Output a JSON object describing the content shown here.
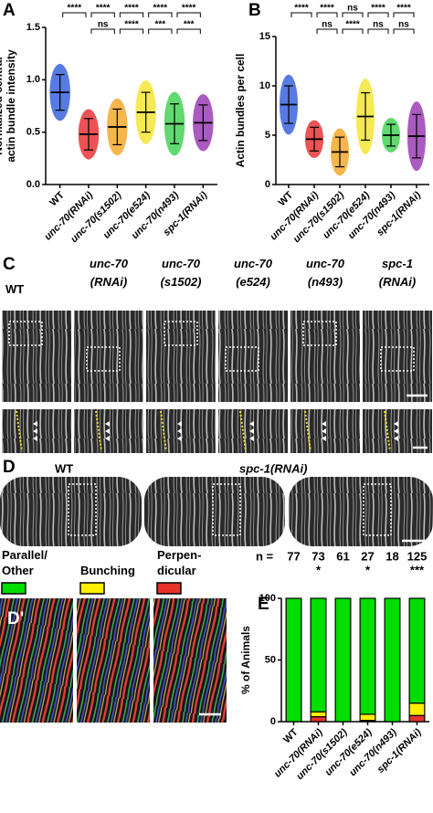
{
  "chart_data": [
    {
      "type": "dot",
      "panel": "A",
      "ylabel": "Normalized central\nactin bundle intensity",
      "categories": [
        "WT",
        "unc-70(RNAi)",
        "unc-70(s1502)",
        "unc-70(e524)",
        "unc-70(n493)",
        "spc-1(RNAi)"
      ],
      "values": [
        0.88,
        0.48,
        0.55,
        0.69,
        0.58,
        0.59
      ],
      "errors": [
        0.17,
        0.15,
        0.17,
        0.19,
        0.19,
        0.17
      ],
      "colors": [
        "#1f4fd8",
        "#e41a1c",
        "#f39c12",
        "#f2e21b",
        "#2ecc40",
        "#8e24aa"
      ],
      "ylim": [
        0,
        1.5
      ],
      "yticks": [
        {
          "value": 0,
          "label": "0.0"
        },
        0.5,
        {
          "value": 1,
          "label": "1.0"
        },
        1.5
      ],
      "comparisons": [
        [
          {
            "from": 0,
            "to": 1,
            "label": "****"
          },
          {
            "from": 1,
            "to": 2,
            "label": "****"
          },
          {
            "from": 2,
            "to": 3,
            "label": "****"
          },
          {
            "from": 3,
            "to": 4,
            "label": "****"
          },
          {
            "from": 4,
            "to": 5,
            "label": "****"
          }
        ],
        [
          {
            "from": 1,
            "to": 2,
            "label": "ns"
          },
          {
            "from": 2,
            "to": 3,
            "label": "****"
          },
          {
            "from": 3,
            "to": 4,
            "label": "***"
          },
          {
            "from": 4,
            "to": 5,
            "label": "***"
          }
        ]
      ]
    },
    {
      "type": "dot",
      "panel": "B",
      "ylabel": "Actin bundles per cell",
      "categories": [
        "WT",
        "unc-70(RNAi)",
        "unc-70(s1502)",
        "unc-70(e524)",
        "unc-70(n493)",
        "spc-1(RNAi)"
      ],
      "values": [
        8.1,
        4.6,
        3.3,
        6.9,
        5.0,
        4.9
      ],
      "errors": [
        1.9,
        1.2,
        1.5,
        2.4,
        1.1,
        2.2
      ],
      "colors": [
        "#1f4fd8",
        "#e41a1c",
        "#f39c12",
        "#f2e21b",
        "#2ecc40",
        "#8e24aa"
      ],
      "ylim": [
        0,
        15
      ],
      "yticks": [
        0,
        5,
        10,
        15
      ],
      "comparisons": [
        [
          {
            "from": 0,
            "to": 1,
            "label": "****"
          },
          {
            "from": 1,
            "to": 2,
            "label": "****"
          },
          {
            "from": 2,
            "to": 3,
            "label": "ns"
          },
          {
            "from": 3,
            "to": 4,
            "label": "****"
          },
          {
            "from": 4,
            "to": 5,
            "label": "****"
          }
        ],
        [
          {
            "from": 1,
            "to": 2,
            "label": "ns"
          },
          {
            "from": 2,
            "to": 3,
            "label": "****"
          },
          {
            "from": 3,
            "to": 4,
            "label": "ns"
          },
          {
            "from": 4,
            "to": 5,
            "label": "ns"
          }
        ]
      ]
    },
    {
      "type": "stacked_bar",
      "panel": "E",
      "ylabel": "% of Animals",
      "categories": [
        "WT",
        "unc-70(RNAi)",
        "unc-70(s1502)",
        "unc-70(e524)",
        "unc-70(n493)",
        "spc-1(RNAi)"
      ],
      "series": [
        {
          "name": "Perpen-\ndicular",
          "color": "#e8322a",
          "values": [
            0,
            4,
            0,
            1,
            0,
            5
          ]
        },
        {
          "name": "Bunching",
          "color": "#ffee00",
          "values": [
            0,
            4,
            0,
            5,
            0,
            10
          ]
        },
        {
          "name": "Parallel/\nOther",
          "color": "#00dd00",
          "values": [
            100,
            92,
            100,
            94,
            100,
            85
          ]
        }
      ],
      "n_label": "n =",
      "counts": [
        77,
        73,
        61,
        27,
        18,
        125
      ],
      "stars": [
        null,
        "*",
        null,
        "*",
        null,
        "***"
      ],
      "ylim": [
        0,
        100
      ],
      "yticks": [
        0,
        50,
        100
      ]
    }
  ],
  "panel_c": {
    "label": "C",
    "columns": [
      "WT",
      "unc-70\n(RNAi)",
      "unc-70\n(s1502)",
      "unc-70\n(e524)",
      "unc-70\n(n493)",
      "spc-1\n(RNAi)"
    ]
  },
  "panel_d": {
    "label": "D",
    "labels": [
      "WT",
      "spc-1(RNAi)"
    ]
  },
  "panel_d_prime": {
    "label": "D'"
  }
}
